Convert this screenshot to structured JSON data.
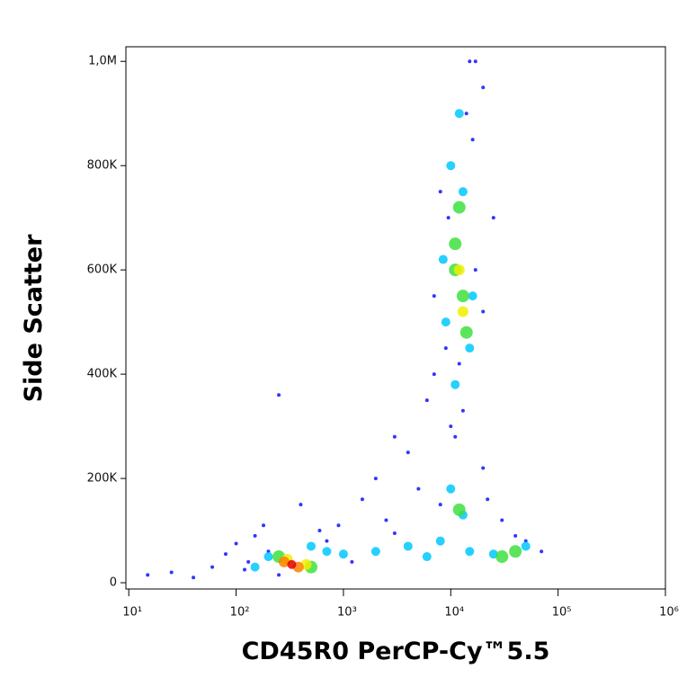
{
  "chart_data": {
    "type": "scatter",
    "x_label": "CD45R0 PerCP-Cy™5.5",
    "y_label": "Side Scatter",
    "xscale": "log",
    "xlim": [
      9.4,
      1000000
    ],
    "ylim": [
      -12000,
      1028000
    ],
    "xticks": [
      {
        "value": 10,
        "label": "10¹"
      },
      {
        "value": 100,
        "label": "10²"
      },
      {
        "value": 1000,
        "label": "10³"
      },
      {
        "value": 10000,
        "label": "10⁴"
      },
      {
        "value": 100000,
        "label": "10⁵"
      },
      {
        "value": 1000000,
        "label": "10⁶"
      }
    ],
    "yticks": [
      0,
      {
        "value": 200000,
        "label": "200K"
      },
      {
        "value": 400000,
        "label": "400K"
      },
      {
        "value": 600000,
        "label": "600K"
      },
      {
        "value": 800000,
        "label": "800K"
      },
      {
        "value": 1000000,
        "label": "1,0M"
      }
    ],
    "series": [
      {
        "color": "#1010ff",
        "marker_size": 2,
        "x": [
          15,
          25,
          40,
          60,
          80,
          100,
          130,
          150,
          200,
          250,
          180,
          120,
          700,
          900,
          1500,
          2000,
          3000,
          5000,
          7000,
          2500,
          4000,
          6000,
          8000,
          15000,
          20000,
          30000,
          50000,
          70000,
          9000,
          14000,
          16000,
          8000,
          13000,
          17000,
          20000,
          9500,
          17000,
          12000,
          11000,
          20000,
          40000,
          3000,
          1200,
          250,
          400,
          600,
          10000,
          25000,
          7000,
          22000
        ],
        "values": [
          15000,
          20000,
          10000,
          30000,
          55000,
          75000,
          40000,
          90000,
          60000,
          15000,
          110000,
          25000,
          80000,
          110000,
          160000,
          200000,
          280000,
          180000,
          400000,
          120000,
          250000,
          350000,
          150000,
          1000000,
          950000,
          120000,
          80000,
          60000,
          450000,
          900000,
          850000,
          750000,
          330000,
          1000000,
          520000,
          700000,
          600000,
          420000,
          280000,
          220000,
          90000,
          95000,
          40000,
          360000,
          150000,
          100000,
          300000,
          700000,
          550000,
          160000
        ]
      },
      {
        "color": "#00c8ff",
        "marker_size": 5,
        "x": [
          150,
          200,
          500,
          700,
          1000,
          2000,
          4000,
          6000,
          8000,
          15000,
          25000,
          50000,
          10000,
          13000,
          10000,
          12000,
          9000,
          15000,
          11000,
          13000,
          8500,
          16000
        ],
        "values": [
          30000,
          50000,
          70000,
          60000,
          55000,
          60000,
          70000,
          50000,
          80000,
          60000,
          55000,
          70000,
          180000,
          130000,
          800000,
          900000,
          500000,
          450000,
          380000,
          750000,
          620000,
          550000
        ]
      },
      {
        "color": "#40e040",
        "marker_size": 7,
        "x": [
          250,
          500,
          12000,
          40000,
          30000,
          11000,
          13000,
          12000,
          14000,
          11000
        ],
        "values": [
          50000,
          30000,
          140000,
          60000,
          50000,
          650000,
          550000,
          720000,
          480000,
          600000
        ]
      },
      {
        "color": "#f0f000",
        "marker_size": 6,
        "x": [
          300,
          450,
          12000,
          13000
        ],
        "values": [
          45000,
          35000,
          600000,
          520000
        ]
      },
      {
        "color": "#ff8000",
        "marker_size": 6,
        "x": [
          280,
          380
        ],
        "values": [
          40000,
          30000
        ]
      },
      {
        "color": "#e00000",
        "marker_size": 5,
        "x": [
          330
        ],
        "values": [
          35000
        ]
      }
    ]
  }
}
